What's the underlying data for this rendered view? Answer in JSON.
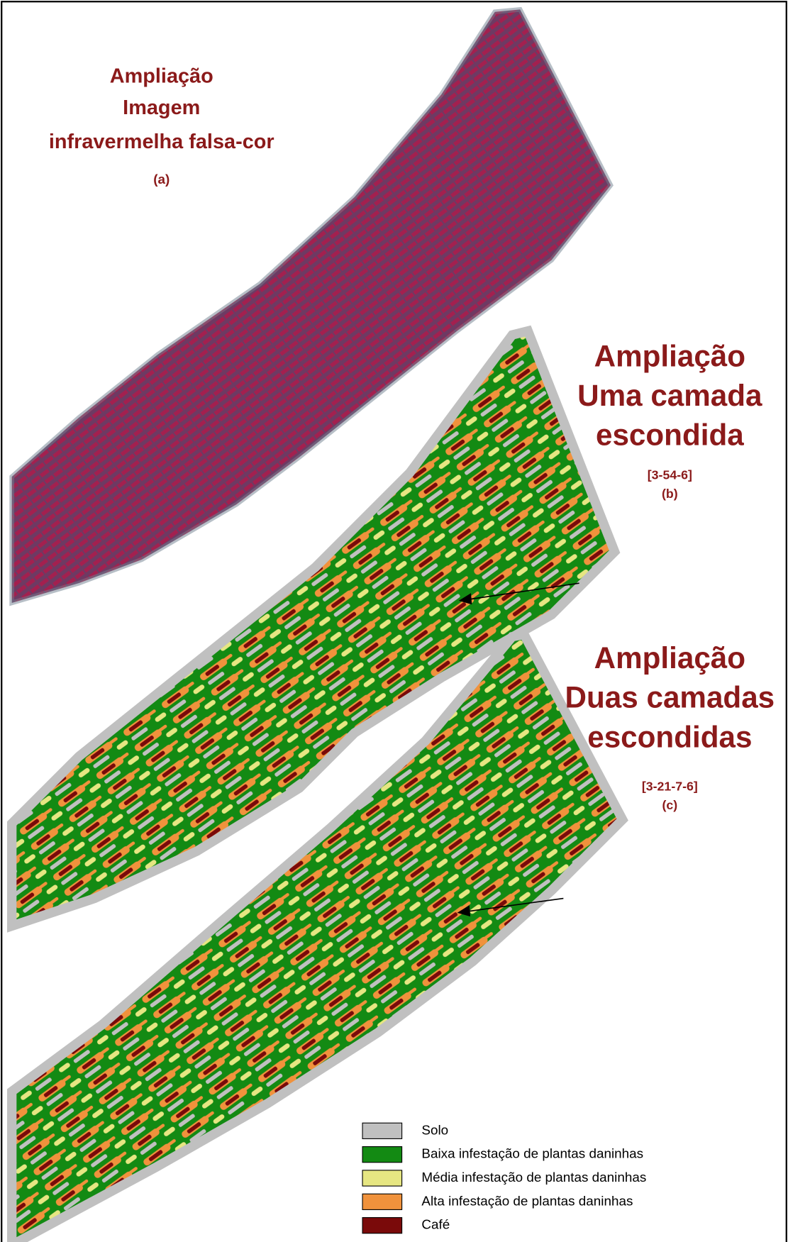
{
  "panels": [
    {
      "lines": [
        "Ampliação",
        "Imagem",
        "infravermelha falsa-cor"
      ],
      "label": "(a)"
    },
    {
      "lines": [
        "Ampliação",
        "Uma camada",
        "escondida"
      ],
      "code": "[3-54-6]",
      "label": "(b)"
    },
    {
      "lines": [
        "Ampliação",
        "Duas camadas",
        "escondidas"
      ],
      "code": "[3-21-7-6]",
      "label": "(c)"
    }
  ],
  "legend": [
    "Solo",
    "Baixa infestação de plantas daninhas",
    "Média infestação de plantas daninhas",
    "Alta infestação de plantas daninhas",
    "Café"
  ]
}
